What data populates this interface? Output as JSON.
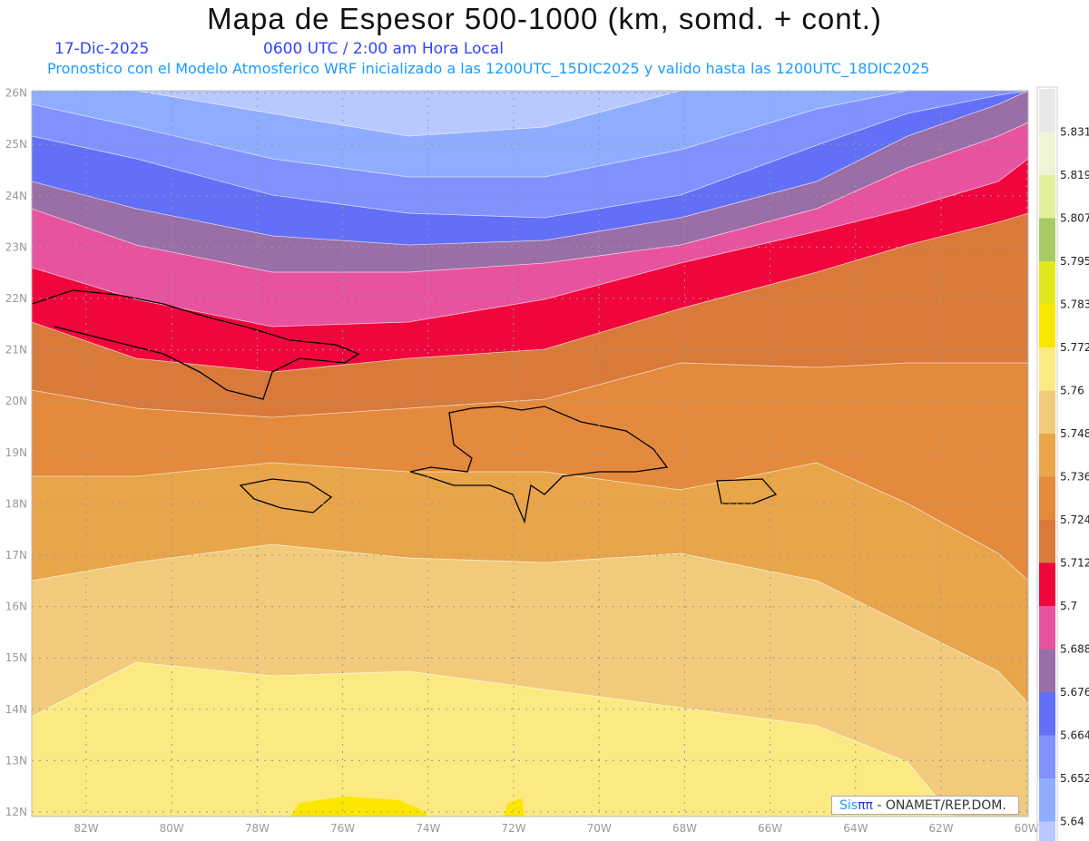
{
  "header": {
    "title": "Mapa de Espesor 500-1000 (km, somd. + cont.)",
    "date": "17-Dic-2025",
    "time": "0600 UTC / 2:00 am Hora Local",
    "subtitle": "Pronostico con el Modelo Atmosferico WRF inicializado a las 1200UTC_15DIC2025 y valido hasta las  1200UTC_18DIC2025"
  },
  "logo": {
    "sis": "Sis",
    "pi": "ππ",
    "text": " - ONAMET/REP.DOM."
  },
  "chart_data": {
    "type": "heatmap",
    "title": "Mapa de Espesor 500-1000 (km, somd. + cont.)",
    "variable": "500-1000 hPa thickness (km)",
    "lat_ticks": [
      "12N",
      "13N",
      "14N",
      "15N",
      "16N",
      "17N",
      "18N",
      "19N",
      "20N",
      "21N",
      "22N",
      "23N",
      "24N",
      "25N",
      "26N"
    ],
    "lon_ticks": [
      "82W",
      "80W",
      "78W",
      "76W",
      "74W",
      "72W",
      "70W",
      "68W",
      "66W",
      "64W",
      "62W",
      "60W"
    ],
    "xlim": [
      -83.3,
      -60
    ],
    "ylim": [
      11.9,
      26.05
    ],
    "colorbar": {
      "labels": [
        "5.831",
        "5.819",
        "5.807",
        "5.795",
        "5.783",
        "5.772",
        "5.76",
        "5.748",
        "5.736",
        "5.724",
        "5.712",
        "5.7",
        "5.688",
        "5.676",
        "5.664",
        "5.652",
        "5.64"
      ],
      "colors": [
        "#e8e8e8",
        "#eff5d4",
        "#e1f09a",
        "#a8c965",
        "#e1e81a",
        "#fbe600",
        "#fde982",
        "#f1cb7b",
        "#e8a54a",
        "#e38a3c",
        "#d97a3b",
        "#f0063c",
        "#e8539f",
        "#9a6ea6",
        "#6270f7",
        "#7f92ff",
        "#8eadff",
        "#b9c8ff"
      ]
    },
    "pattern": "thickness increases from ~5.64 km in the north (Bahamas) to ~5.78 km in the south (Caribbean Sea)"
  }
}
